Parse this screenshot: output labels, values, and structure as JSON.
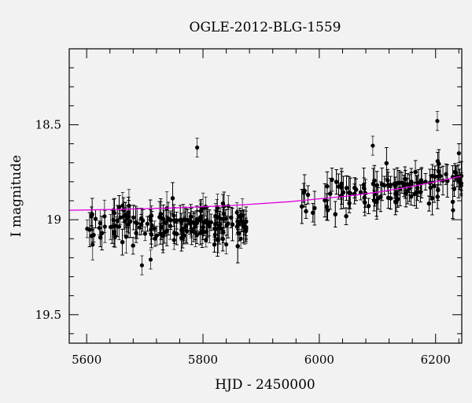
{
  "chart_data": {
    "type": "scatter",
    "title": "OGLE-2012-BLG-1559",
    "xlabel": "HJD - 2450000",
    "ylabel": "I magnitude",
    "xlim": [
      5570,
      6245
    ],
    "ylim": [
      19.65,
      18.1
    ],
    "y_inverted": true,
    "x_ticks": [
      5600,
      5800,
      6000,
      6200
    ],
    "y_ticks": [
      18.5,
      19,
      19.5
    ],
    "y_tick_labels": [
      "18.5",
      "19",
      "19.5"
    ],
    "x_minor_step": 40,
    "y_minor_step": 0.1,
    "grid": false,
    "colors": {
      "points": "#000000",
      "model": "#e000e0",
      "background": "#f2f2f2"
    },
    "series": [
      {
        "type": "points_with_errorbars",
        "observing_seasons": [
          {
            "x_start": 5600,
            "x_end": 5875,
            "mean_mag": 18.95,
            "scatter_mag": 0.09,
            "typical_error": 0.06
          },
          {
            "x_start": 5965,
            "x_end": 6245,
            "mean_mag": 18.83,
            "scatter_mag": 0.09,
            "typical_error": 0.06
          }
        ],
        "highlighted_points": [
          {
            "x": 5695,
            "y": 19.24
          },
          {
            "x": 5710,
            "y": 19.21
          },
          {
            "x": 5790,
            "y": 18.62
          },
          {
            "x": 5840,
            "y": 19.13
          },
          {
            "x": 5865,
            "y": 19.1
          },
          {
            "x": 6092,
            "y": 18.61
          },
          {
            "x": 6203,
            "y": 18.48
          },
          {
            "x": 6230,
            "y": 18.95
          },
          {
            "x": 6240,
            "y": 18.65
          }
        ]
      },
      {
        "type": "line",
        "x": [
          5570,
          5650,
          5750,
          5850,
          5950,
          6050,
          6100,
          6150,
          6200,
          6245
        ],
        "y": [
          18.95,
          18.946,
          18.938,
          18.925,
          18.905,
          18.875,
          18.855,
          18.83,
          18.8,
          18.77
        ]
      }
    ]
  }
}
